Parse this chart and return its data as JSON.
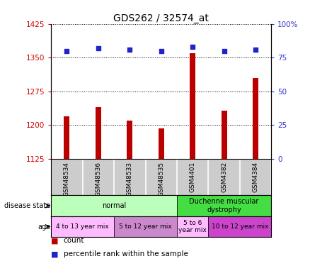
{
  "title": "GDS262 / 32574_at",
  "samples": [
    "GSM48534",
    "GSM48536",
    "GSM48533",
    "GSM48535",
    "GSM4401",
    "GSM4382",
    "GSM4384"
  ],
  "counts": [
    1220,
    1240,
    1210,
    1192,
    1360,
    1232,
    1305
  ],
  "percentile_ranks": [
    80,
    82,
    81,
    80,
    83,
    80,
    81
  ],
  "ylim_left": [
    1125,
    1425
  ],
  "ylim_right": [
    0,
    100
  ],
  "yticks_left": [
    1125,
    1200,
    1275,
    1350,
    1425
  ],
  "yticks_right": [
    0,
    25,
    50,
    75,
    100
  ],
  "bar_color": "#bb0000",
  "dot_color": "#2222cc",
  "disease_state_groups": [
    {
      "label": "normal",
      "start": 0,
      "end": 4,
      "color": "#bbffbb"
    },
    {
      "label": "Duchenne muscular\ndystrophy",
      "start": 4,
      "end": 7,
      "color": "#44dd44"
    }
  ],
  "age_groups": [
    {
      "label": "4 to 13 year mix",
      "start": 0,
      "end": 2,
      "color": "#ffbbff"
    },
    {
      "label": "5 to 12 year mix",
      "start": 2,
      "end": 4,
      "color": "#cc88cc"
    },
    {
      "label": "5 to 6\nyear mix",
      "start": 4,
      "end": 5,
      "color": "#ffbbff"
    },
    {
      "label": "10 to 12 year mix",
      "start": 5,
      "end": 7,
      "color": "#cc44cc"
    }
  ],
  "left_label_color": "#cc0000",
  "right_label_color": "#3333cc",
  "sample_bg_color": "#cccccc",
  "bar_width": 0.18
}
